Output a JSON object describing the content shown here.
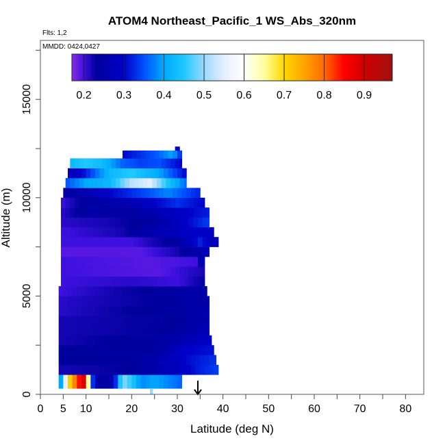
{
  "chart_data": {
    "type": "heatmap",
    "title": "ATOM4 Northeast_Pacific_1 WS_Abs_320nm",
    "flights_label": "Flts: 1,2",
    "dates_label": "MMDD: 0424,0427",
    "xlabel": "Latitude (deg N)",
    "ylabel": "Altitude (m)",
    "xlim": [
      0,
      84
    ],
    "ylim": [
      0,
      18000
    ],
    "x_ticks": [
      0,
      5,
      10,
      20,
      30,
      40,
      50,
      60,
      70,
      80
    ],
    "y_ticks": [
      0,
      5000,
      10000,
      15000
    ],
    "colorbar": {
      "range": [
        0.17,
        0.97
      ],
      "ticks": [
        0.2,
        0.3,
        0.4,
        0.5,
        0.6,
        0.7,
        0.8,
        0.9
      ],
      "stops": [
        {
          "v": 0.17,
          "c": "#8a2be2"
        },
        {
          "v": 0.2,
          "c": "#3d10e0"
        },
        {
          "v": 0.23,
          "c": "#00009c"
        },
        {
          "v": 0.3,
          "c": "#0000c8"
        },
        {
          "v": 0.35,
          "c": "#0050ff"
        },
        {
          "v": 0.4,
          "c": "#00aaff"
        },
        {
          "v": 0.45,
          "c": "#1ec8ff"
        },
        {
          "v": 0.5,
          "c": "#9ad8ff"
        },
        {
          "v": 0.55,
          "c": "#e4f0ff"
        },
        {
          "v": 0.6,
          "c": "#ffffff"
        },
        {
          "v": 0.65,
          "c": "#ffffa0"
        },
        {
          "v": 0.7,
          "c": "#ffd700"
        },
        {
          "v": 0.75,
          "c": "#ffa500"
        },
        {
          "v": 0.8,
          "c": "#ff6a00"
        },
        {
          "v": 0.85,
          "c": "#ff0000"
        },
        {
          "v": 0.9,
          "c": "#d00000"
        },
        {
          "v": 0.97,
          "c": "#a01010"
        }
      ]
    },
    "region_marker_latitude": 34.5,
    "profile": [
      {
        "alt": [
          300,
          1000
        ],
        "lat": [
          4,
          31
        ],
        "anchors": [
          [
            4,
            0.38
          ],
          [
            5,
            0.42
          ],
          [
            6,
            0.68
          ],
          [
            7,
            0.74
          ],
          [
            8,
            0.82
          ],
          [
            9,
            0.87
          ],
          [
            10,
            0.9
          ],
          [
            11,
            0.4
          ],
          [
            12,
            0.26
          ],
          [
            14,
            0.24
          ],
          [
            16,
            0.27
          ],
          [
            18,
            0.5
          ],
          [
            20,
            0.45
          ],
          [
            22,
            0.38
          ],
          [
            25,
            0.4
          ],
          [
            28,
            0.38
          ],
          [
            31,
            0.36
          ]
        ]
      },
      {
        "alt": [
          1000,
          1500
        ],
        "lat": [
          4,
          39
        ],
        "anchors": [
          [
            4,
            0.22
          ],
          [
            20,
            0.23
          ],
          [
            30,
            0.28
          ],
          [
            35,
            0.32
          ],
          [
            39,
            0.34
          ]
        ]
      },
      {
        "alt": [
          1500,
          2000
        ],
        "lat": [
          4,
          38.5
        ],
        "anchors": [
          [
            4,
            0.23
          ],
          [
            22,
            0.24
          ],
          [
            28,
            0.28
          ],
          [
            33,
            0.31
          ],
          [
            38.5,
            0.33
          ]
        ]
      },
      {
        "alt": [
          2000,
          2500
        ],
        "lat": [
          4,
          38
        ],
        "anchors": [
          [
            4,
            0.23
          ],
          [
            25,
            0.24
          ],
          [
            32,
            0.3
          ],
          [
            38,
            0.31
          ]
        ]
      },
      {
        "alt": [
          2500,
          3000
        ],
        "lat": [
          4,
          37.5
        ],
        "anchors": [
          [
            4,
            0.22
          ],
          [
            26,
            0.24
          ],
          [
            32,
            0.27
          ],
          [
            37.5,
            0.3
          ]
        ]
      },
      {
        "alt": [
          3000,
          3500
        ],
        "lat": [
          4,
          37
        ],
        "anchors": [
          [
            4,
            0.22
          ],
          [
            28,
            0.23
          ],
          [
            34,
            0.26
          ],
          [
            37,
            0.28
          ]
        ]
      },
      {
        "alt": [
          3500,
          4000
        ],
        "lat": [
          4,
          37
        ],
        "anchors": [
          [
            4,
            0.22
          ],
          [
            30,
            0.23
          ],
          [
            37,
            0.26
          ]
        ]
      },
      {
        "alt": [
          4000,
          4500
        ],
        "lat": [
          4,
          37
        ],
        "anchors": [
          [
            4,
            0.21
          ],
          [
            20,
            0.23
          ],
          [
            30,
            0.24
          ],
          [
            37,
            0.26
          ]
        ]
      },
      {
        "alt": [
          4500,
          5000
        ],
        "lat": [
          4,
          37
        ],
        "anchors": [
          [
            4,
            0.21
          ],
          [
            25,
            0.23
          ],
          [
            37,
            0.25
          ]
        ]
      },
      {
        "alt": [
          5000,
          5500
        ],
        "lat": [
          4,
          36.5
        ],
        "anchors": [
          [
            4,
            0.2
          ],
          [
            15,
            0.22
          ],
          [
            30,
            0.24
          ],
          [
            36.5,
            0.25
          ]
        ]
      },
      {
        "alt": [
          5500,
          6000
        ],
        "lat": [
          4.5,
          36
        ],
        "anchors": [
          [
            4.5,
            0.2
          ],
          [
            20,
            0.21
          ],
          [
            30,
            0.2
          ],
          [
            36,
            0.23
          ]
        ]
      },
      {
        "alt": [
          6000,
          6500
        ],
        "lat": [
          4.5,
          36
        ],
        "anchors": [
          [
            4.5,
            0.2
          ],
          [
            26,
            0.19
          ],
          [
            36,
            0.22
          ]
        ]
      },
      {
        "alt": [
          6500,
          7000
        ],
        "lat": [
          4.5,
          36
        ],
        "anchors": [
          [
            4.5,
            0.2
          ],
          [
            24,
            0.19
          ],
          [
            34,
            0.2
          ],
          [
            36,
            0.3
          ]
        ]
      },
      {
        "alt": [
          7000,
          7500
        ],
        "lat": [
          4.5,
          37
        ],
        "anchors": [
          [
            4.5,
            0.19
          ],
          [
            22,
            0.19
          ],
          [
            30,
            0.22
          ],
          [
            37,
            0.28
          ]
        ]
      },
      {
        "alt": [
          7500,
          8000
        ],
        "lat": [
          4.5,
          39
        ],
        "anchors": [
          [
            4.5,
            0.2
          ],
          [
            20,
            0.2
          ],
          [
            30,
            0.24
          ],
          [
            35,
            0.32
          ],
          [
            39,
            0.26
          ]
        ]
      },
      {
        "alt": [
          8000,
          8500
        ],
        "lat": [
          4.5,
          38
        ],
        "anchors": [
          [
            4.5,
            0.2
          ],
          [
            18,
            0.22
          ],
          [
            26,
            0.27
          ],
          [
            34,
            0.3
          ],
          [
            38,
            0.28
          ]
        ]
      },
      {
        "alt": [
          8500,
          9000
        ],
        "lat": [
          4.5,
          37
        ],
        "anchors": [
          [
            4.5,
            0.21
          ],
          [
            15,
            0.22
          ],
          [
            25,
            0.24
          ],
          [
            32,
            0.3
          ],
          [
            37,
            0.34
          ]
        ]
      },
      {
        "alt": [
          9000,
          9500
        ],
        "lat": [
          4.5,
          37
        ],
        "anchors": [
          [
            4.5,
            0.21
          ],
          [
            12,
            0.25
          ],
          [
            20,
            0.24
          ],
          [
            28,
            0.28
          ],
          [
            37,
            0.32
          ]
        ]
      },
      {
        "alt": [
          9500,
          10000
        ],
        "lat": [
          4.5,
          36
        ],
        "anchors": [
          [
            4.5,
            0.2
          ],
          [
            10,
            0.24
          ],
          [
            18,
            0.26
          ],
          [
            25,
            0.3
          ],
          [
            30,
            0.33
          ],
          [
            36,
            0.3
          ]
        ]
      },
      {
        "alt": [
          10000,
          10500
        ],
        "lat": [
          5,
          35
        ],
        "anchors": [
          [
            5,
            0.24
          ],
          [
            10,
            0.26
          ],
          [
            15,
            0.3
          ],
          [
            22,
            0.34
          ],
          [
            28,
            0.38
          ],
          [
            35,
            0.32
          ]
        ]
      },
      {
        "alt": [
          10500,
          11000
        ],
        "lat": [
          5.5,
          32
        ],
        "anchors": [
          [
            5.5,
            0.35
          ],
          [
            10,
            0.4
          ],
          [
            15,
            0.42
          ],
          [
            20,
            0.52
          ],
          [
            24,
            0.55
          ],
          [
            28,
            0.44
          ],
          [
            32,
            0.36
          ]
        ]
      },
      {
        "alt": [
          11000,
          11500
        ],
        "lat": [
          6,
          32
        ],
        "anchors": [
          [
            6,
            0.28
          ],
          [
            9,
            0.3
          ],
          [
            12,
            0.36
          ],
          [
            15,
            0.42
          ],
          [
            20,
            0.45
          ],
          [
            26,
            0.4
          ],
          [
            32,
            0.3
          ]
        ]
      },
      {
        "alt": [
          11500,
          12000
        ],
        "lat": [
          6.5,
          31
        ],
        "anchors": [
          [
            6.5,
            0.42
          ],
          [
            10,
            0.45
          ],
          [
            14,
            0.42
          ],
          [
            18,
            0.36
          ],
          [
            22,
            0.34
          ],
          [
            26,
            0.35
          ],
          [
            31,
            0.3
          ]
        ]
      },
      {
        "alt": [
          12000,
          12400
        ],
        "lat": [
          18,
          31
        ],
        "anchors": [
          [
            18,
            0.3
          ],
          [
            22,
            0.33
          ],
          [
            26,
            0.36
          ],
          [
            29,
            0.4
          ],
          [
            31,
            0.32
          ]
        ]
      },
      {
        "alt": [
          12400,
          12600
        ],
        "lat": [
          29.5,
          30.5
        ],
        "anchors": [
          [
            29.5,
            0.3
          ],
          [
            30.5,
            0.3
          ]
        ]
      },
      {
        "alt": [
          0,
          300
        ],
        "lat": [
          24,
          24.6
        ],
        "anchors": [
          [
            24,
            0.5
          ],
          [
            24.6,
            0.5
          ]
        ]
      }
    ]
  }
}
